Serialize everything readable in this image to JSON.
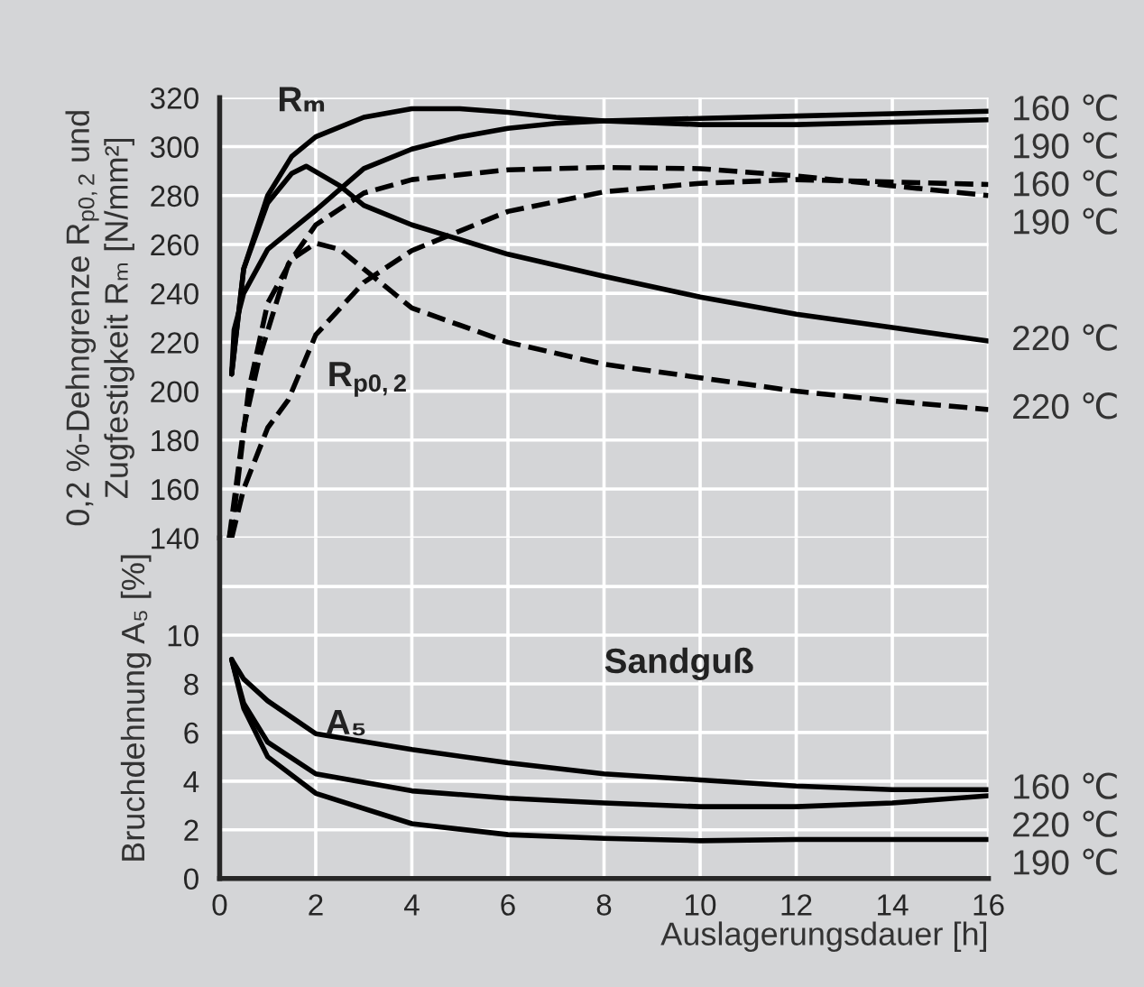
{
  "chart_data": [
    {
      "type": "line",
      "ylabel": "0,2 %-Dehngrenze R$_{p0,2}$ und\nZugfestigkeit Rₘ [N/mm²]",
      "xlim": [
        0,
        16
      ],
      "xticks": [
        0,
        2,
        4,
        6,
        8,
        10,
        12,
        14,
        16
      ],
      "ylim": [
        140,
        320
      ],
      "yticks": [
        140,
        160,
        180,
        200,
        220,
        240,
        260,
        280,
        300,
        320
      ],
      "tick_labels": "y",
      "grid": true,
      "marker": "none",
      "legend": false,
      "annotations": [
        "Rₘ",
        "R$_{p0,2}$"
      ],
      "series": [
        {
          "name": "160 ℃",
          "color": "#000000",
          "line_style": "solid",
          "x": [
            0.25,
            0.3,
            0.5,
            1,
            2,
            3,
            4,
            5,
            6,
            7,
            8,
            10,
            12,
            14,
            16
          ],
          "values": [
            207,
            225,
            240,
            258,
            274,
            291,
            299,
            304,
            307.5,
            309.5,
            310.5,
            311.5,
            312.5,
            313.5,
            314.5
          ]
        },
        {
          "name": "190 ℃",
          "color": "#000000",
          "line_style": "solid",
          "x": [
            0.25,
            0.5,
            1,
            1.5,
            2,
            3,
            4,
            5,
            6,
            7,
            8,
            10,
            12,
            14,
            16
          ],
          "values": [
            207,
            250,
            280,
            296,
            304,
            312,
            315.5,
            315.5,
            314,
            312,
            310.5,
            309,
            309,
            310,
            311
          ]
        },
        {
          "name": "220 ℃",
          "color": "#000000",
          "line_style": "solid",
          "x": [
            0.25,
            0.5,
            1,
            1.5,
            1.8,
            2.5,
            3,
            4,
            6,
            8,
            10,
            12,
            14,
            16
          ],
          "values": [
            207,
            250,
            277,
            289,
            292,
            284,
            276,
            268,
            256,
            247,
            238.5,
            231.5,
            226,
            220.5
          ]
        },
        {
          "name": "190 ℃",
          "color": "#000000",
          "line_style": "dashed",
          "x": [
            0.2,
            0.5,
            0.83,
            1.43,
            2,
            3,
            4,
            6,
            8,
            10,
            12,
            14,
            16
          ],
          "values": [
            140,
            185,
            214,
            252,
            268,
            281,
            286.5,
            290.5,
            291.5,
            291,
            288,
            284,
            280
          ]
        },
        {
          "name": "160 ℃",
          "color": "#000000",
          "line_style": "dashed",
          "x": [
            0.25,
            0.5,
            1,
            1.43,
            2,
            3,
            4,
            6,
            8,
            10,
            12,
            14,
            16
          ],
          "values": [
            140,
            160,
            185,
            196.5,
            223,
            244.5,
            257.5,
            273.5,
            281.5,
            285,
            286.5,
            285.5,
            284.5
          ]
        },
        {
          "name": "220 ℃",
          "color": "#000000",
          "line_style": "dashed",
          "x": [
            0.2,
            0.3,
            0.6,
            1,
            1.5,
            2,
            2.5,
            3,
            4,
            6,
            8,
            10,
            12,
            14,
            16
          ],
          "values": [
            140,
            150,
            200,
            236,
            254,
            260.5,
            258,
            250,
            234,
            220,
            211,
            205.5,
            200,
            196,
            192.5
          ]
        }
      ]
    },
    {
      "type": "line",
      "ylabel": "Bruchdehnung A₅ [%]",
      "xlabel": "Auslagerungsdauer [h]",
      "xlim": [
        0,
        16
      ],
      "xticks": [
        0,
        2,
        4,
        6,
        8,
        10,
        12,
        14,
        16
      ],
      "ylim": [
        0,
        14
      ],
      "yticks": [
        0,
        2,
        4,
        6,
        8,
        10,
        {
          "value": 12,
          "label": null
        }
      ],
      "grid": true,
      "marker": "none",
      "legend": false,
      "annotations": [
        {
          "text": "A₅",
          "x": 2.2,
          "y": 6.3
        },
        "Sandguß"
      ],
      "series": [
        {
          "name": "160 ℃",
          "color": "#000000",
          "line_style": "solid",
          "x": [
            0.25,
            0.5,
            1,
            2,
            4,
            6,
            8,
            10,
            12,
            14,
            16
          ],
          "values": [
            9,
            8.2,
            7.3,
            5.95,
            5.3,
            4.75,
            4.3,
            4.05,
            3.8,
            3.65,
            3.65
          ]
        },
        {
          "name": "220 ℃",
          "color": "#000000",
          "line_style": "solid",
          "x": [
            0.25,
            0.5,
            1,
            2,
            4,
            6,
            8,
            10,
            12,
            14,
            16
          ],
          "values": [
            9,
            7.2,
            5.6,
            4.3,
            3.6,
            3.3,
            3.1,
            2.95,
            2.95,
            3.1,
            3.4
          ]
        },
        {
          "name": "190 ℃",
          "color": "#000000",
          "line_style": "solid",
          "x": [
            0.25,
            0.5,
            1,
            2,
            4,
            6,
            8,
            10,
            12,
            14,
            16
          ],
          "values": [
            9,
            7.0,
            5.0,
            3.5,
            2.25,
            1.8,
            1.65,
            1.55,
            1.6,
            1.6,
            1.6
          ]
        }
      ]
    }
  ]
}
